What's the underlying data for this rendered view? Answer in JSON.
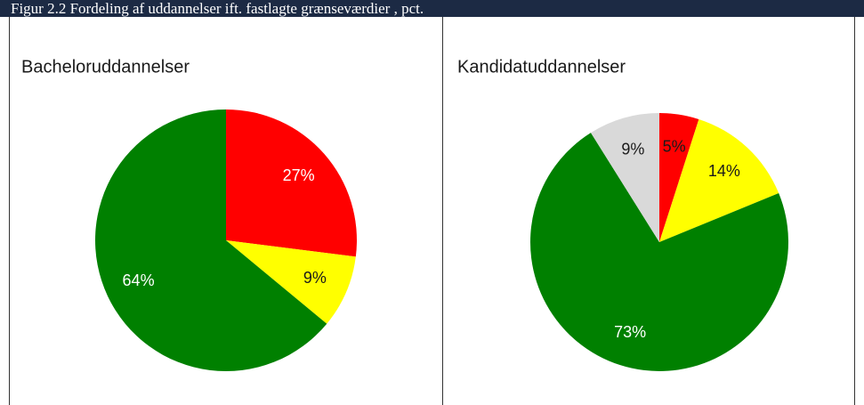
{
  "header": {
    "title": "Figur 2.2 Fordeling af uddannelser ift. fastlagte grænseværdier , pct."
  },
  "chart_data": [
    {
      "type": "pie",
      "title": "Bacheloruddannelser",
      "values": [
        27,
        9,
        64
      ],
      "value_labels": [
        "27%",
        "9%",
        "64%"
      ],
      "colors": [
        "#ff0000",
        "#ffff00",
        "#008000"
      ],
      "label_colors": [
        "#ffffff",
        "#1a1a1a",
        "#ffffff"
      ]
    },
    {
      "type": "pie",
      "title": "Kandidatuddannelser",
      "values": [
        5,
        14,
        73,
        9
      ],
      "value_labels": [
        "5%",
        "14%",
        "73%",
        "9%"
      ],
      "colors": [
        "#ff0000",
        "#ffff00",
        "#008000",
        "#d9d9d9"
      ],
      "label_colors": [
        "#1a1a1a",
        "#1a1a1a",
        "#ffffff",
        "#1a1a1a"
      ]
    }
  ]
}
